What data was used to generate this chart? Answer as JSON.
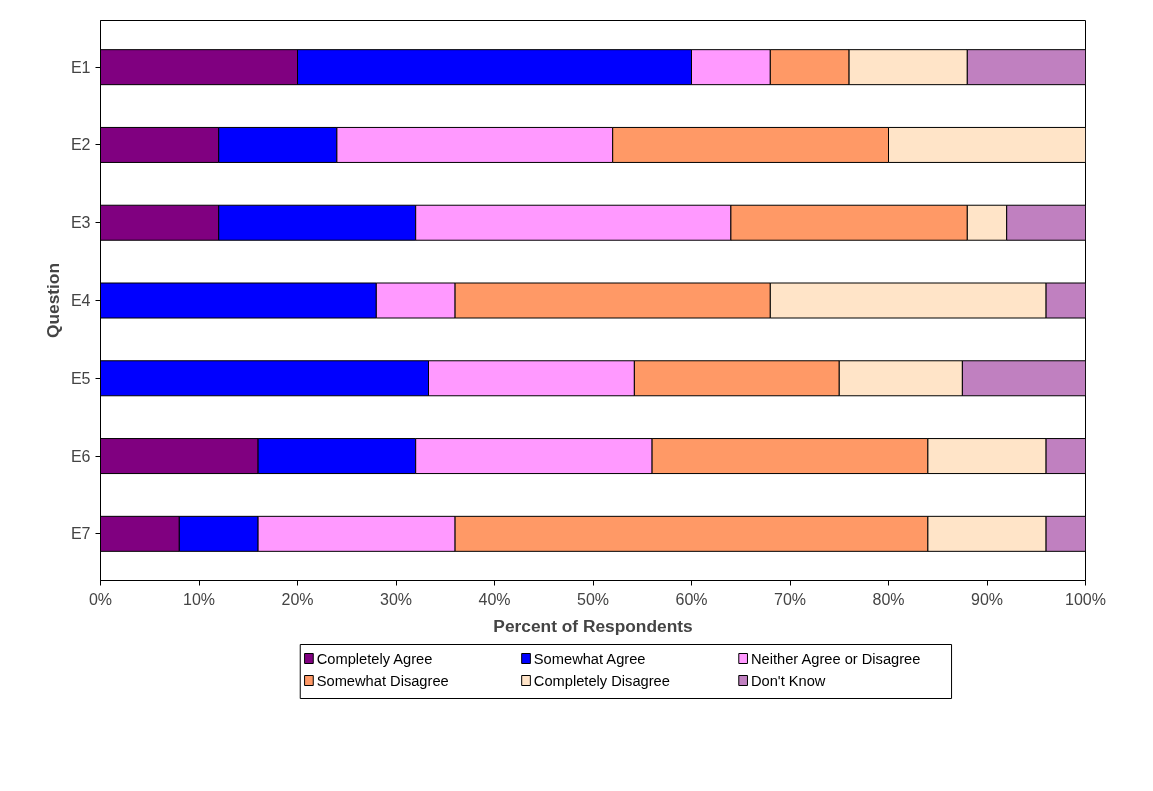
{
  "chart_data": {
    "type": "bar",
    "orientation": "horizontal",
    "stacked": true,
    "categories": [
      "E1",
      "E2",
      "E3",
      "E4",
      "E5",
      "E6",
      "E7"
    ],
    "xlabel": "Percent of Respondents",
    "ylabel": "Question",
    "xlim": [
      0,
      100
    ],
    "xticks": [
      {
        "value": 0,
        "label": "0%"
      },
      {
        "value": 10,
        "label": "10%"
      },
      {
        "value": 20,
        "label": "20%"
      },
      {
        "value": 30,
        "label": "30%"
      },
      {
        "value": 40,
        "label": "40%"
      },
      {
        "value": 50,
        "label": "50%"
      },
      {
        "value": 60,
        "label": "60%"
      },
      {
        "value": 70,
        "label": "70%"
      },
      {
        "value": 80,
        "label": "80%"
      },
      {
        "value": 90,
        "label": "90%"
      },
      {
        "value": 100,
        "label": "100%"
      }
    ],
    "grid": false,
    "legend": "bottom",
    "series": [
      {
        "name": "Completely Agree",
        "color": "#800080",
        "values": [
          20,
          12,
          12,
          0,
          0,
          16,
          8
        ]
      },
      {
        "name": "Somewhat Agree",
        "color": "#0000ff",
        "values": [
          40,
          12,
          20,
          28,
          33.3,
          16,
          8
        ]
      },
      {
        "name": "Neither Agree or Disagree",
        "color": "#ff99ff",
        "values": [
          8,
          28,
          32,
          8,
          20.9,
          24,
          20
        ]
      },
      {
        "name": "Somewhat Disagree",
        "color": "#ff9966",
        "values": [
          8,
          28,
          24,
          32,
          20.8,
          28,
          48
        ]
      },
      {
        "name": "Completely Disagree",
        "color": "#ffe4c8",
        "values": [
          12,
          20,
          4,
          28,
          12.5,
          12,
          12
        ]
      },
      {
        "name": "Don't Know",
        "color": "#c080c0",
        "values": [
          12,
          0,
          8,
          4,
          12.5,
          4,
          4
        ]
      }
    ]
  }
}
